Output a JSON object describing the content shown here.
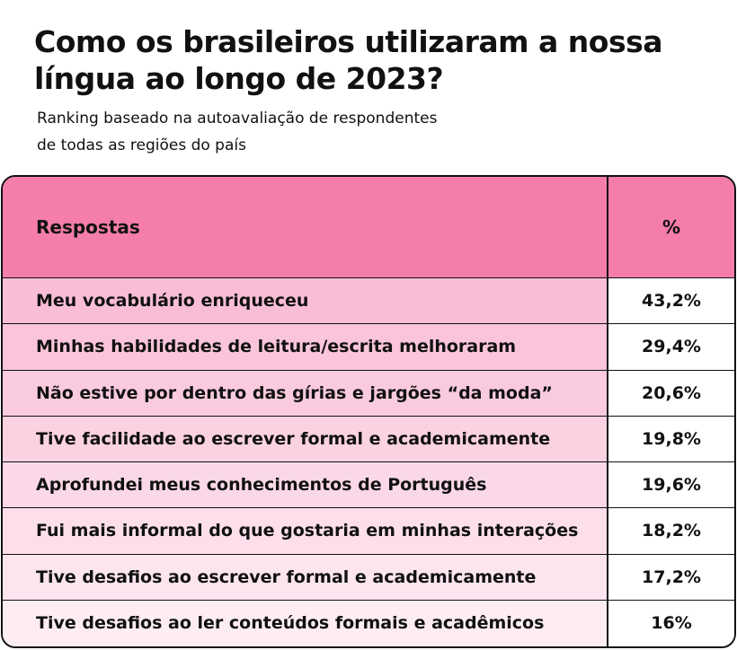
{
  "header": {
    "title": [
      "Como os brasileiros utilizaram a nossa",
      "língua ao longo de 2023?"
    ],
    "subtitle": [
      "Ranking baseado na autoavaliação de respondentes",
      "de todas as regiões do país"
    ]
  },
  "table": {
    "columns": [
      "Respostas",
      "%"
    ],
    "rows": [
      [
        "Meu vocabulário enriqueceu",
        "43,2%"
      ],
      [
        "Minhas habilidades de leitura/escrita melhoraram",
        "29,4%"
      ],
      [
        "Não estive por dentro das gírias e jargões “da moda”",
        "20,6%"
      ],
      [
        "Tive facilidade ao escrever formal e academicamente",
        "19,8%"
      ],
      [
        "Aprofundei meus conhecimentos de Português",
        "19,6%"
      ],
      [
        "Fui mais informal do que gostaria em minhas interações",
        "18,2%"
      ],
      [
        "Tive desafios ao escrever formal e academicamente",
        "17,2%"
      ],
      [
        "Tive desafios ao ler conteúdos formais e acadêmicos",
        "16%"
      ]
    ]
  }
}
